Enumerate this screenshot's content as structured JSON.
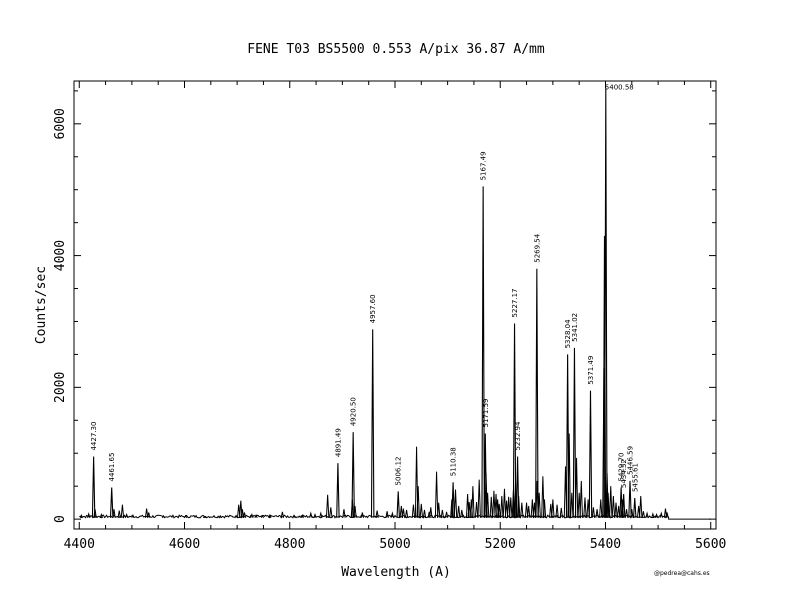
{
  "chart_data": {
    "type": "line",
    "title": "FENE  T03  BS5500  0.553 A/pix  36.87 A/mm",
    "xlabel": "Wavelength (A)",
    "ylabel": "Counts/sec",
    "credit": "@pedrea@cahs.es",
    "xlim": [
      4390,
      5610
    ],
    "ylim": [
      -150,
      6650
    ],
    "xticks": [
      4400,
      4600,
      4800,
      5000,
      5200,
      5400,
      5600
    ],
    "xtick_labels": [
      "4400",
      "4600",
      "4800",
      "5000",
      "5200",
      "5400",
      "5600"
    ],
    "yticks": [
      0,
      2000,
      4000,
      6000
    ],
    "ytick_labels": [
      "0",
      "2000",
      "4000",
      "6000"
    ],
    "grid": false,
    "baseline": 20,
    "spectrum_range": [
      4400,
      5520
    ],
    "peaks": [
      {
        "x": 4427.3,
        "y": 950,
        "label": "4427.30"
      },
      {
        "x": 4461.65,
        "y": 480,
        "label": "4461.65"
      },
      {
        "x": 4891.49,
        "y": 850,
        "label": "4891.49"
      },
      {
        "x": 4920.5,
        "y": 1320,
        "label": "4920.50"
      },
      {
        "x": 4957.6,
        "y": 2880,
        "label": "4957.60"
      },
      {
        "x": 5006.12,
        "y": 420,
        "label": "5006.12"
      },
      {
        "x": 5110.38,
        "y": 560,
        "label": "5110.38"
      },
      {
        "x": 5167.49,
        "y": 5050,
        "label": "5167.49"
      },
      {
        "x": 5171.59,
        "y": 1300,
        "label": "5171.59"
      },
      {
        "x": 5227.17,
        "y": 2970,
        "label": "5227.17"
      },
      {
        "x": 5232.94,
        "y": 950,
        "label": "5232.94"
      },
      {
        "x": 5269.54,
        "y": 3800,
        "label": "5269.54"
      },
      {
        "x": 5328.04,
        "y": 2500,
        "label": "5328.04"
      },
      {
        "x": 5341.02,
        "y": 2600,
        "label": "5341.02"
      },
      {
        "x": 5371.49,
        "y": 1950,
        "label": "5371.49"
      },
      {
        "x": 5400.58,
        "y": 6550,
        "label": "5400.58"
      },
      {
        "x": 5429.7,
        "y": 480,
        "label": "5429.70"
      },
      {
        "x": 5434.52,
        "y": 380,
        "label": "5434.52"
      },
      {
        "x": 5446.59,
        "y": 580,
        "label": "5446.59"
      },
      {
        "x": 5455.61,
        "y": 320,
        "label": "5455.61"
      }
    ],
    "minor_lines": [
      [
        4404,
        60
      ],
      [
        4418,
        80
      ],
      [
        4430,
        150
      ],
      [
        4442,
        70
      ],
      [
        4466,
        150
      ],
      [
        4476,
        130
      ],
      [
        4482,
        220
      ],
      [
        4490,
        70
      ],
      [
        4502,
        60
      ],
      [
        4528,
        160
      ],
      [
        4532,
        100
      ],
      [
        4560,
        50
      ],
      [
        4602,
        50
      ],
      [
        4638,
        40
      ],
      [
        4668,
        50
      ],
      [
        4703,
        220
      ],
      [
        4707,
        280
      ],
      [
        4710,
        150
      ],
      [
        4714,
        100
      ],
      [
        4728,
        70
      ],
      [
        4736,
        60
      ],
      [
        4748,
        50
      ],
      [
        4762,
        60
      ],
      [
        4786,
        110
      ],
      [
        4808,
        50
      ],
      [
        4824,
        60
      ],
      [
        4840,
        90
      ],
      [
        4848,
        70
      ],
      [
        4859,
        90
      ],
      [
        4872,
        370
      ],
      [
        4878,
        180
      ],
      [
        4903,
        150
      ],
      [
        4919,
        300
      ],
      [
        4924,
        200
      ],
      [
        4938,
        100
      ],
      [
        4966,
        130
      ],
      [
        4985,
        120
      ],
      [
        4995,
        90
      ],
      [
        5012,
        200
      ],
      [
        5016,
        160
      ],
      [
        5022,
        140
      ],
      [
        5035,
        220
      ],
      [
        5041,
        1100
      ],
      [
        5044,
        500
      ],
      [
        5050,
        230
      ],
      [
        5056,
        140
      ],
      [
        5065,
        110
      ],
      [
        5068,
        180
      ],
      [
        5079,
        720
      ],
      [
        5083,
        250
      ],
      [
        5090,
        140
      ],
      [
        5098,
        110
      ],
      [
        5108,
        300
      ],
      [
        5115,
        450
      ],
      [
        5121,
        200
      ],
      [
        5127,
        140
      ],
      [
        5138,
        380
      ],
      [
        5141,
        260
      ],
      [
        5145,
        300
      ],
      [
        5148,
        500
      ],
      [
        5155,
        260
      ],
      [
        5160,
        600
      ],
      [
        5173,
        700
      ],
      [
        5176,
        400
      ],
      [
        5183,
        340
      ],
      [
        5188,
        430
      ],
      [
        5192,
        380
      ],
      [
        5195,
        300
      ],
      [
        5198,
        230
      ],
      [
        5203,
        350
      ],
      [
        5208,
        460
      ],
      [
        5212,
        280
      ],
      [
        5216,
        340
      ],
      [
        5220,
        330
      ],
      [
        5225,
        440
      ],
      [
        5229,
        560
      ],
      [
        5235,
        350
      ],
      [
        5241,
        250
      ],
      [
        5250,
        250
      ],
      [
        5254,
        200
      ],
      [
        5261,
        300
      ],
      [
        5265,
        250
      ],
      [
        5270,
        580
      ],
      [
        5274,
        400
      ],
      [
        5281,
        650
      ],
      [
        5284,
        300
      ],
      [
        5296,
        230
      ],
      [
        5300,
        300
      ],
      [
        5308,
        220
      ],
      [
        5316,
        170
      ],
      [
        5324,
        800
      ],
      [
        5331,
        1300
      ],
      [
        5336,
        400
      ],
      [
        5345,
        930
      ],
      [
        5350,
        400
      ],
      [
        5354,
        580
      ],
      [
        5361,
        330
      ],
      [
        5367,
        300
      ],
      [
        5377,
        180
      ],
      [
        5384,
        150
      ],
      [
        5391,
        300
      ],
      [
        5397,
        2300
      ],
      [
        5398,
        4300
      ],
      [
        5403,
        700
      ],
      [
        5405,
        400
      ],
      [
        5410,
        500
      ],
      [
        5415,
        350
      ],
      [
        5420,
        250
      ],
      [
        5425,
        200
      ],
      [
        5432,
        300
      ],
      [
        5440,
        150
      ],
      [
        5450,
        150
      ],
      [
        5463,
        200
      ],
      [
        5467,
        350
      ],
      [
        5472,
        120
      ],
      [
        5479,
        90
      ],
      [
        5490,
        80
      ],
      [
        5497,
        70
      ],
      [
        5506,
        90
      ],
      [
        5514,
        160
      ],
      [
        5517,
        100
      ]
    ]
  }
}
